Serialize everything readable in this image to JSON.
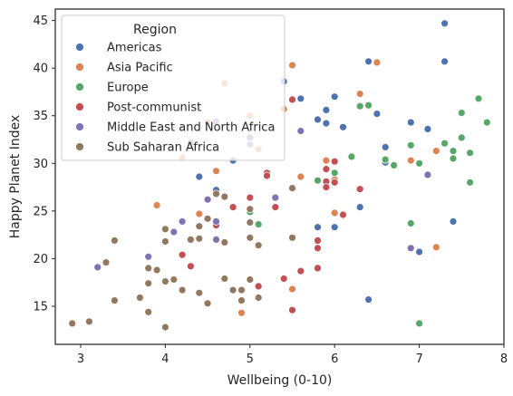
{
  "chart_data": {
    "type": "scatter",
    "xlabel": "Wellbeing (0-10)",
    "ylabel": "Happy Planet Index",
    "xlim": [
      2.7,
      8.0
    ],
    "ylim": [
      11.0,
      46.2
    ],
    "xticks": [
      "3",
      "4",
      "5",
      "6",
      "7",
      "8"
    ],
    "xtick_values": [
      3,
      4,
      5,
      6,
      7,
      8
    ],
    "yticks": [
      "15",
      "20",
      "25",
      "30",
      "35",
      "40",
      "45"
    ],
    "ytick_values": [
      15,
      20,
      25,
      30,
      35,
      40,
      45
    ],
    "grid": false,
    "legend": {
      "title": "Region",
      "placement": "top-left"
    },
    "series": [
      {
        "name": "Americas",
        "color": "#4c72b0",
        "points": [
          [
            7.3,
            44.7
          ],
          [
            7.3,
            40.7
          ],
          [
            6.4,
            40.7
          ],
          [
            5.4,
            38.6
          ],
          [
            6.0,
            37.0
          ],
          [
            5.6,
            36.8
          ],
          [
            6.4,
            36.0
          ],
          [
            5.9,
            35.6
          ],
          [
            6.5,
            35.2
          ],
          [
            5.8,
            34.6
          ],
          [
            6.9,
            34.3
          ],
          [
            5.9,
            34.2
          ],
          [
            6.1,
            33.8
          ],
          [
            7.1,
            33.6
          ],
          [
            5.0,
            32.7
          ],
          [
            6.6,
            31.7
          ],
          [
            4.8,
            30.3
          ],
          [
            6.6,
            30.1
          ],
          [
            4.4,
            28.6
          ],
          [
            4.6,
            27.2
          ],
          [
            6.3,
            25.4
          ],
          [
            7.4,
            23.9
          ],
          [
            5.8,
            23.3
          ],
          [
            6.0,
            23.3
          ],
          [
            7.0,
            20.7
          ],
          [
            6.4,
            15.7
          ]
        ]
      },
      {
        "name": "Asia Pacific",
        "color": "#dd8452",
        "points": [
          [
            5.5,
            40.3
          ],
          [
            6.5,
            40.6
          ],
          [
            4.7,
            38.4
          ],
          [
            6.3,
            37.3
          ],
          [
            5.4,
            35.7
          ],
          [
            5.0,
            35.0
          ],
          [
            4.5,
            34.3
          ],
          [
            6.4,
            36.0
          ],
          [
            5.1,
            31.5
          ],
          [
            4.2,
            30.6
          ],
          [
            7.2,
            31.3
          ],
          [
            6.9,
            30.3
          ],
          [
            5.9,
            30.3
          ],
          [
            4.6,
            29.2
          ],
          [
            5.6,
            28.6
          ],
          [
            6.0,
            28.3
          ],
          [
            3.9,
            25.6
          ],
          [
            4.4,
            24.7
          ],
          [
            6.0,
            24.8
          ],
          [
            6.1,
            24.5
          ],
          [
            7.2,
            21.2
          ],
          [
            5.5,
            16.8
          ],
          [
            4.9,
            14.3
          ]
        ]
      },
      {
        "name": "Europe",
        "color": "#55a868",
        "points": [
          [
            7.7,
            36.8
          ],
          [
            6.4,
            36.1
          ],
          [
            6.3,
            36.0
          ],
          [
            7.8,
            34.3
          ],
          [
            7.5,
            35.3
          ],
          [
            7.5,
            32.7
          ],
          [
            7.3,
            32.1
          ],
          [
            6.9,
            31.9
          ],
          [
            6.2,
            30.7
          ],
          [
            7.4,
            31.3
          ],
          [
            7.6,
            31.1
          ],
          [
            7.4,
            30.5
          ],
          [
            6.6,
            30.4
          ],
          [
            7.0,
            30.0
          ],
          [
            6.7,
            29.8
          ],
          [
            6.0,
            29.0
          ],
          [
            5.8,
            28.2
          ],
          [
            7.6,
            28.0
          ],
          [
            5.0,
            24.9
          ],
          [
            5.1,
            23.6
          ],
          [
            6.9,
            23.7
          ],
          [
            7.0,
            13.2
          ]
        ]
      },
      {
        "name": "Post-communist",
        "color": "#c44e52",
        "points": [
          [
            5.5,
            36.7
          ],
          [
            6.0,
            30.2
          ],
          [
            5.9,
            29.4
          ],
          [
            5.2,
            29.0
          ],
          [
            5.2,
            28.7
          ],
          [
            6.0,
            28.0
          ],
          [
            5.9,
            28.1
          ],
          [
            5.9,
            27.5
          ],
          [
            6.3,
            27.3
          ],
          [
            5.0,
            26.4
          ],
          [
            4.8,
            25.4
          ],
          [
            5.3,
            25.4
          ],
          [
            6.1,
            24.6
          ],
          [
            4.6,
            23.5
          ],
          [
            5.8,
            21.9
          ],
          [
            5.8,
            21.1
          ],
          [
            4.2,
            20.4
          ],
          [
            4.3,
            19.2
          ],
          [
            5.8,
            19.0
          ],
          [
            5.6,
            18.7
          ],
          [
            5.4,
            17.9
          ],
          [
            5.1,
            17.1
          ],
          [
            5.5,
            14.6
          ]
        ]
      },
      {
        "name": "Middle East and North Africa",
        "color": "#8172b3",
        "points": [
          [
            4.6,
            34.4
          ],
          [
            5.6,
            33.4
          ],
          [
            4.3,
            32.2
          ],
          [
            5.0,
            32.0
          ],
          [
            7.1,
            28.8
          ],
          [
            4.5,
            26.2
          ],
          [
            5.3,
            26.4
          ],
          [
            4.6,
            23.9
          ],
          [
            4.2,
            23.9
          ],
          [
            4.1,
            22.8
          ],
          [
            4.6,
            22.0
          ],
          [
            6.9,
            21.1
          ],
          [
            3.8,
            20.2
          ],
          [
            3.2,
            19.1
          ]
        ]
      },
      {
        "name": "Sub Saharan Africa",
        "color": "#937860",
        "points": [
          [
            5.5,
            27.4
          ],
          [
            4.6,
            26.8
          ],
          [
            4.7,
            26.5
          ],
          [
            5.0,
            25.2
          ],
          [
            4.5,
            24.2
          ],
          [
            5.0,
            23.8
          ],
          [
            4.0,
            23.1
          ],
          [
            4.4,
            23.4
          ],
          [
            5.0,
            22.2
          ],
          [
            4.4,
            22.1
          ],
          [
            4.3,
            22.0
          ],
          [
            5.5,
            22.2
          ],
          [
            3.4,
            21.9
          ],
          [
            4.0,
            21.8
          ],
          [
            4.7,
            21.7
          ],
          [
            5.1,
            21.4
          ],
          [
            3.3,
            19.6
          ],
          [
            3.8,
            19.0
          ],
          [
            3.9,
            18.8
          ],
          [
            4.1,
            17.8
          ],
          [
            4.0,
            17.6
          ],
          [
            3.8,
            17.4
          ],
          [
            4.7,
            17.9
          ],
          [
            5.0,
            17.8
          ],
          [
            4.2,
            16.7
          ],
          [
            4.8,
            16.7
          ],
          [
            4.9,
            16.7
          ],
          [
            4.4,
            16.4
          ],
          [
            3.7,
            15.9
          ],
          [
            5.1,
            15.9
          ],
          [
            3.4,
            15.6
          ],
          [
            4.9,
            15.6
          ],
          [
            4.5,
            15.3
          ],
          [
            3.8,
            14.4
          ],
          [
            3.1,
            13.4
          ],
          [
            2.9,
            13.2
          ],
          [
            4.0,
            12.8
          ]
        ]
      }
    ]
  }
}
